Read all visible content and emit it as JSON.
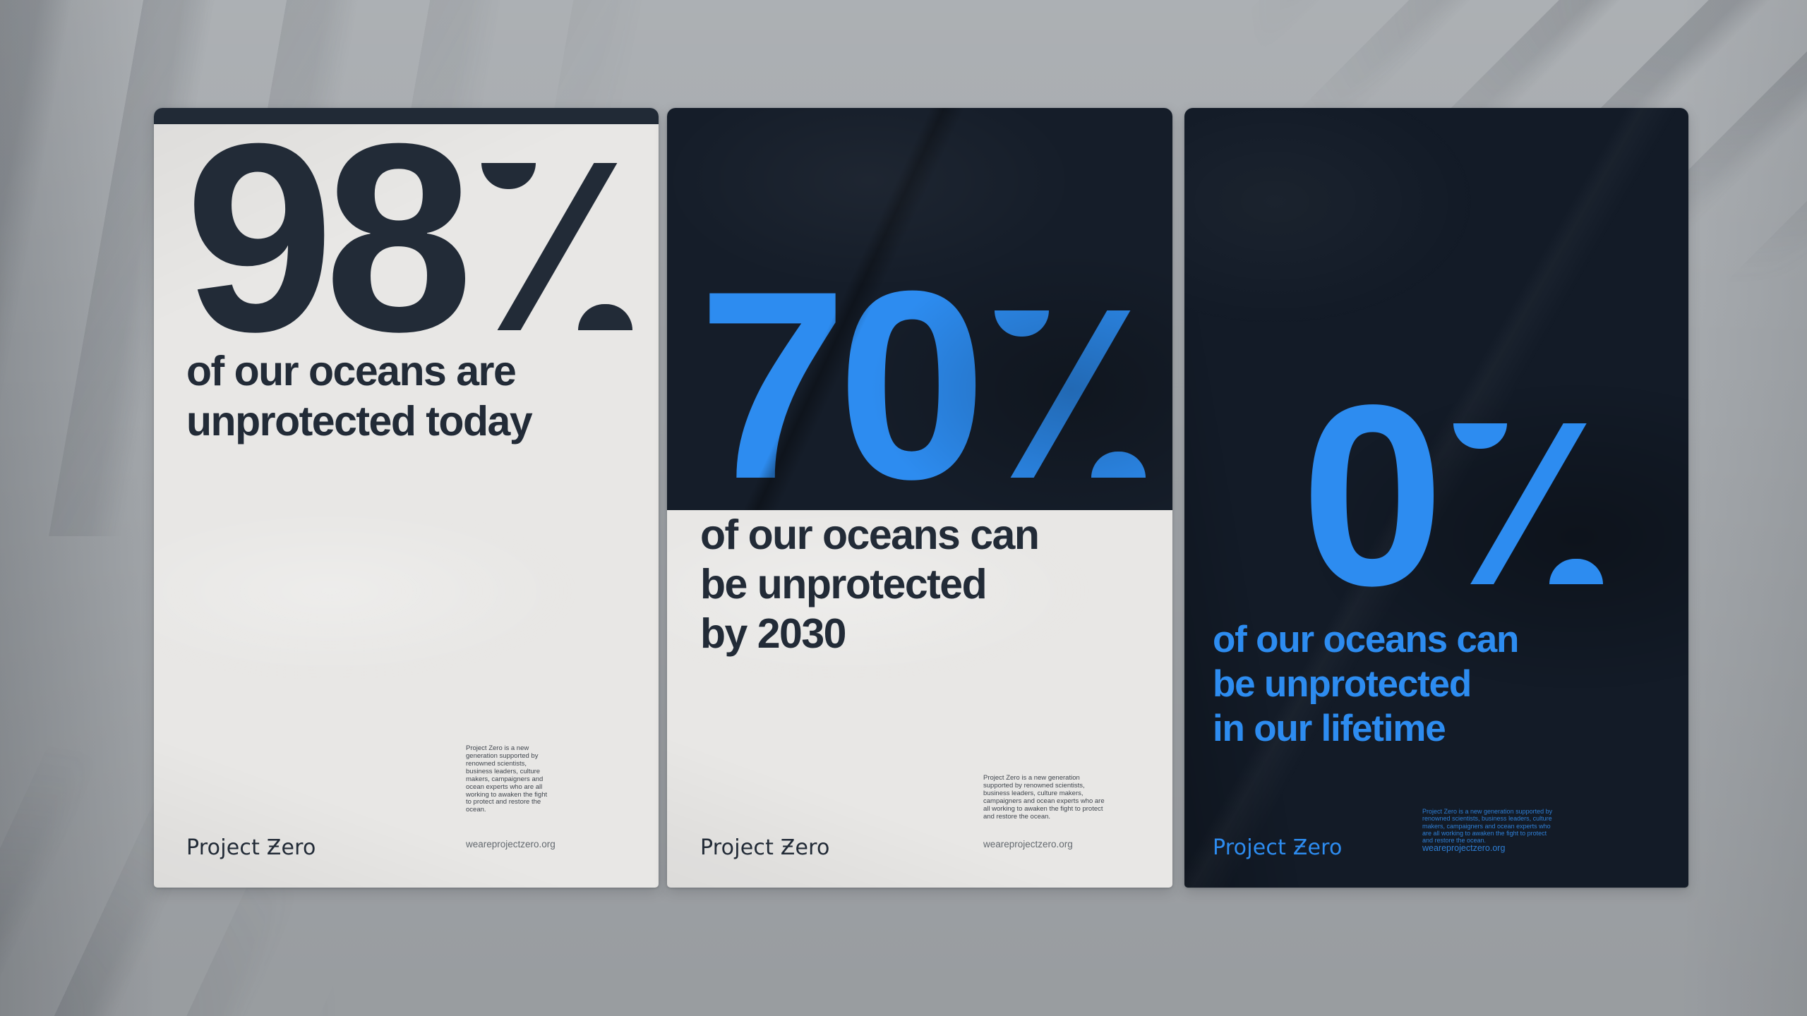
{
  "colors": {
    "wall_gray": "#a6aaae",
    "poster_offwhite": "#e8e7e5",
    "poster_navy_bar": "#212a36",
    "poster_dark_navy": "#151d29",
    "poster_darkest_navy": "#131b27",
    "headline_navy": "#222b37",
    "accent_blue": "#2d8cf0",
    "url_gray": "#63696f"
  },
  "posters": [
    {
      "stat": "98",
      "suffix": "%",
      "headline": "of our oceans are\nunprotected today",
      "about": "Project Zero is a new generation supported by renowned scientists, business leaders, culture makers, campaigners and ocean experts who are all working to awaken the fight to protect and restore the ocean.",
      "logo": "Project Ƶero",
      "website": "weareprojectzero.org"
    },
    {
      "stat": "70",
      "suffix": "%",
      "headline": "of our oceans can\nbe unprotected\nby 2030",
      "about": "Project Zero is a new generation supported by renowned scientists, business leaders, culture makers, campaigners and ocean experts who are all working to awaken the fight to protect and restore the ocean.",
      "logo": "Project Ƶero",
      "website": "weareprojectzero.org"
    },
    {
      "stat": "0",
      "suffix": "%",
      "headline": "of our oceans can\nbe unprotected\nin our lifetime",
      "about": "Project Zero is a new generation supported by renowned scientists, business leaders, culture makers, campaigners and ocean experts who are all working to awaken the fight to protect and restore the ocean.",
      "logo": "Project Ƶero",
      "website": "weareprojectzero.org"
    }
  ]
}
